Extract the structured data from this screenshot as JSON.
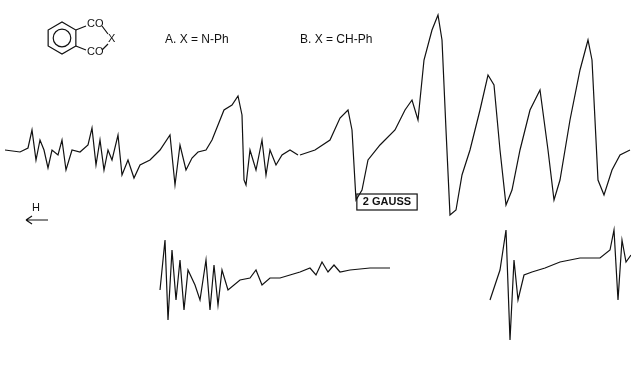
{
  "chart_data": {
    "type": "line",
    "xlim": [
      0,
      631
    ],
    "ylim": [
      0,
      373
    ],
    "tick_labels": false,
    "grid": false,
    "annotations": [
      "A. X = N-Ph",
      "B. X = CH-Ph",
      "2 GAUSS",
      "H"
    ],
    "structure_labels": [
      "CO",
      "CO",
      "X"
    ],
    "series": [
      {
        "color": "#111111",
        "x": [
          5,
          20,
          28,
          32,
          36,
          40,
          44,
          48,
          52,
          58,
          62,
          66,
          72,
          80,
          88,
          92,
          96,
          100,
          104,
          108,
          112,
          118,
          122,
          128,
          134,
          140,
          150,
          160,
          170,
          175,
          180,
          186,
          192,
          198,
          206,
          212,
          218,
          224,
          232,
          238,
          242,
          244,
          246,
          250,
          256,
          262,
          266,
          270,
          276,
          282,
          290,
          298
        ],
        "values": [
          223,
          221,
          225,
          243,
          213,
          233,
          223,
          205,
          223,
          218,
          233,
          203,
          223,
          221,
          228,
          245,
          208,
          233,
          203,
          223,
          213,
          238,
          198,
          213,
          195,
          208,
          213,
          223,
          238,
          188,
          228,
          203,
          215,
          221,
          223,
          233,
          248,
          263,
          268,
          277,
          258,
          193,
          188,
          223,
          203,
          233,
          198,
          223,
          208,
          218,
          223,
          218
        ]
      },
      {
        "color": "#111111",
        "x": [
          300,
          315,
          330,
          340,
          348,
          352,
          356,
          362,
          368,
          380,
          395,
          405,
          412,
          418,
          424,
          432,
          438,
          442,
          446,
          450,
          456,
          462,
          470,
          480,
          488,
          494,
          500,
          506,
          512,
          520,
          530,
          540,
          548,
          554,
          560,
          570,
          580,
          588,
          592,
          598,
          604,
          612,
          620,
          630
        ],
        "values": [
          218,
          223,
          233,
          255,
          263,
          243,
          173,
          183,
          213,
          228,
          243,
          263,
          273,
          253,
          313,
          343,
          358,
          333,
          243,
          158,
          163,
          198,
          223,
          263,
          298,
          288,
          223,
          168,
          183,
          223,
          263,
          283,
          223,
          173,
          193,
          253,
          303,
          333,
          313,
          193,
          178,
          203,
          218,
          223
        ]
      },
      {
        "color": "#111111",
        "x": [
          160,
          165,
          168,
          172,
          176,
          180,
          184,
          188,
          195,
          200,
          206,
          210,
          214,
          218,
          222,
          228,
          240,
          250,
          256,
          262,
          270,
          280,
          290,
          300,
          310,
          316,
          322,
          328,
          334,
          340,
          350,
          370,
          390
        ],
        "values": [
          83,
          133,
          53,
          123,
          73,
          113,
          63,
          103,
          88,
          73,
          113,
          63,
          108,
          68,
          103,
          83,
          93,
          95,
          103,
          88,
          95,
          95,
          98,
          101,
          105,
          98,
          111,
          101,
          108,
          101,
          103,
          105,
          105
        ]
      },
      {
        "color": "#111111",
        "x": [
          490,
          500,
          506,
          510,
          514,
          518,
          524,
          532,
          545,
          560,
          580,
          600,
          610,
          614,
          618,
          622,
          626,
          631
        ],
        "values": [
          73,
          103,
          143,
          33,
          113,
          73,
          98,
          101,
          105,
          111,
          115,
          115,
          123,
          143,
          73,
          133,
          111,
          118
        ]
      }
    ]
  }
}
